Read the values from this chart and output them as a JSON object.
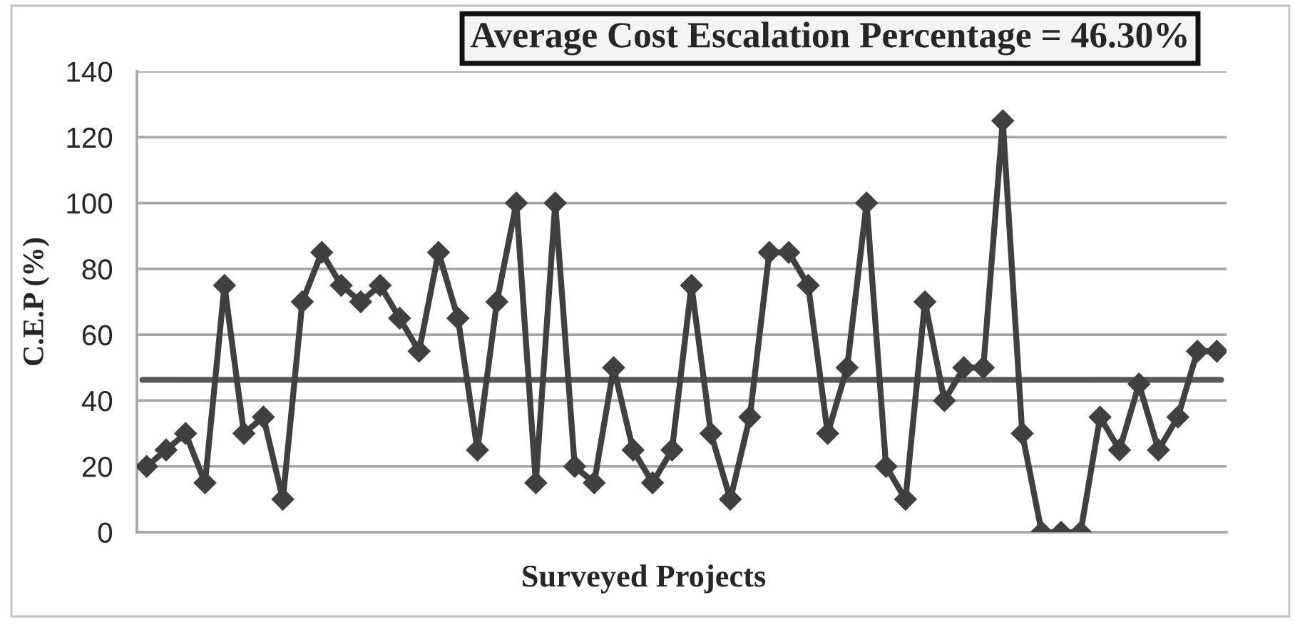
{
  "chart_data": {
    "type": "line",
    "title": "Average Cost Escalation Percentage = 46.30%",
    "xlabel": "Surveyed Projects",
    "ylabel": "C.E.P (%)",
    "categories": [
      null,
      null,
      null,
      null,
      null,
      null,
      null,
      null,
      null,
      null,
      null,
      null,
      null,
      null,
      null,
      null,
      null,
      null,
      null,
      null,
      null,
      null,
      null,
      null,
      null,
      null,
      null,
      null,
      null,
      null,
      null,
      null,
      null,
      null,
      null,
      null,
      null,
      null,
      null,
      null,
      null,
      null,
      null,
      null,
      null,
      null,
      null,
      null,
      null,
      null,
      null,
      null,
      null,
      null,
      null,
      null
    ],
    "series": [
      {
        "color": "#404040",
        "values": [
          20,
          25,
          30,
          15,
          75,
          30,
          35,
          10,
          70,
          85,
          75,
          70,
          75,
          65,
          55,
          85,
          65,
          25,
          70,
          100,
          15,
          100,
          20,
          15,
          50,
          25,
          15,
          25,
          75,
          30,
          10,
          35,
          85,
          85,
          75,
          30,
          50,
          100,
          20,
          10,
          70,
          40,
          50,
          50,
          125,
          30,
          0,
          0,
          0,
          35,
          25,
          45,
          25,
          35,
          55,
          55
        ]
      }
    ],
    "ylim": [
      0,
      140
    ],
    "yticks": [
      0,
      20,
      40,
      60,
      80,
      100,
      120,
      140
    ],
    "ref_lines": [
      {
        "axis": "y",
        "value": 46.3,
        "color": "#5a5a5a"
      }
    ],
    "grid": "y",
    "tick_labels": "y",
    "marker": "diamond",
    "line_style": "solid"
  }
}
